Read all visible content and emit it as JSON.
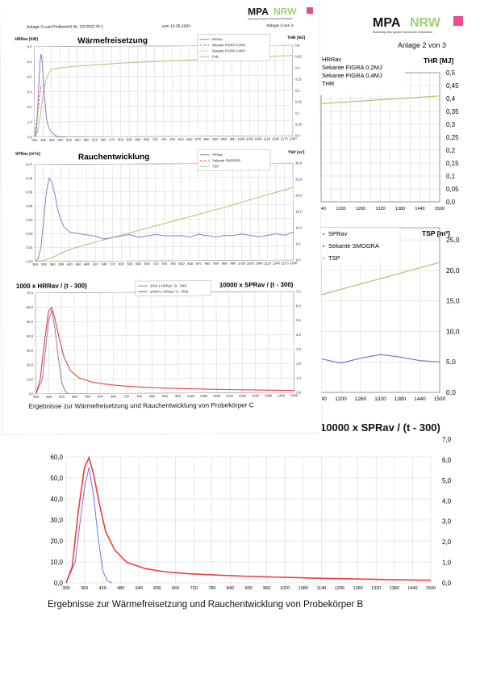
{
  "colors": {
    "hrr": "#8f79c9",
    "spr": "#8f79c9",
    "secant_red": "#ff4a4a",
    "thr_green": "#a6c96d",
    "tsp_green": "#a6c96d",
    "ratio_blue": "#7b6fe0",
    "ratio_red": "#f03c3c",
    "grid": "#c7c7c7"
  },
  "logo_text": {
    "a": "MPA",
    "b": "NRW",
    "sub": "Materialprüfungsamt Nordrhein-Westfalen"
  },
  "front": {
    "header": {
      "left": "Anlage  3  zum Prüfbericht Nr.  231302178-1",
      "mid": "vom  10.05.2024",
      "right": "Anlage  3   von   3"
    },
    "caption": "Ergebnisse zur  Wärmefreisetzung und Rauchentwicklung  von  Probekörper   C"
  },
  "back": {
    "header": {
      "right": "Anlage  2    von    3"
    },
    "caption": "Ergebnisse zur  Wärmefreisetzung und Rauchentwicklung  von  Probekörper   B",
    "title_ratio": "10000 x SPRav / (t - 300)"
  },
  "chart_data": [
    {
      "id": "front-hrr",
      "type": "line",
      "title": "Wärmefreisetzung",
      "ylabel_left": "HRRav [kW]",
      "ylabel_right": "THR [MJ]",
      "x_ticks": [
        "300",
        "330",
        "360",
        "390",
        "420",
        "450",
        "480",
        "510",
        "540",
        "570",
        "600",
        "630",
        "660",
        "690",
        "720",
        "750",
        "780",
        "810",
        "840",
        "870",
        "900",
        "930",
        "960",
        "990",
        "1020",
        "1050",
        "1080",
        "1110",
        "1140",
        "1170",
        "1200"
      ],
      "ylim_left": [
        0,
        6.0
      ],
      "y_ticks_left": [
        "0,0",
        "1,0",
        "2,0",
        "3,0",
        "4,0",
        "5,0",
        "6,0"
      ],
      "ylim_right": [
        0,
        0.4
      ],
      "y_ticks_right": [
        "0,0",
        "0,05",
        "0,1",
        "0,15",
        "0,2",
        "0,25",
        "0,3",
        "0,35",
        "0,4"
      ],
      "legend": [
        "HRRav",
        "Sekante FIGRA 0,2MJ",
        "Sekante FIGRA 0,4MJ",
        "THR"
      ],
      "series": [
        {
          "name": "HRRav",
          "axis": "left",
          "x": [
            300,
            303,
            306,
            309,
            312,
            315,
            318,
            321,
            324,
            327,
            330,
            333,
            336,
            339,
            342,
            348,
            354,
            360,
            366,
            372,
            378,
            384,
            390,
            396,
            402,
            408
          ],
          "y": [
            0.0,
            0.1,
            0.4,
            1.1,
            2.1,
            3.2,
            4.3,
            5.1,
            5.5,
            5.2,
            4.3,
            3.4,
            2.5,
            1.8,
            1.2,
            0.7,
            0.45,
            0.3,
            0.2,
            0.1,
            0.05,
            0.0,
            0.0,
            0.0,
            0.0,
            0.0
          ]
        },
        {
          "name": "Sekante FIGRA 0,2MJ",
          "axis": "left",
          "x": [
            300,
            324
          ],
          "y": [
            0.0,
            3.5
          ]
        },
        {
          "name": "Sekante FIGRA 0,4MJ",
          "axis": "left",
          "x": [
            300,
            324
          ],
          "y": [
            0.0,
            3.5
          ]
        },
        {
          "name": "THR",
          "axis": "right",
          "x": [
            300,
            310,
            320,
            330,
            340,
            350,
            360,
            390,
            420,
            480,
            540,
            600,
            700,
            800,
            900,
            1000,
            1100,
            1200
          ],
          "y": [
            0.0,
            0.02,
            0.09,
            0.19,
            0.25,
            0.28,
            0.3,
            0.305,
            0.31,
            0.315,
            0.32,
            0.325,
            0.33,
            0.335,
            0.34,
            0.345,
            0.35,
            0.355
          ]
        }
      ]
    },
    {
      "id": "front-spr",
      "type": "line",
      "title": "Rauchentwicklung",
      "ylabel_left": "SPRav [m²/s]",
      "ylabel_right": "TSP [m²]",
      "x_ticks": [
        "300",
        "330",
        "360",
        "390",
        "420",
        "450",
        "480",
        "510",
        "540",
        "570",
        "600",
        "630",
        "660",
        "690",
        "720",
        "750",
        "780",
        "810",
        "840",
        "870",
        "900",
        "930",
        "960",
        "990",
        "1020",
        "1050",
        "1080",
        "1110",
        "1140",
        "1170",
        "1200"
      ],
      "ylim_left": [
        0,
        0.07
      ],
      "y_ticks_left": [
        "0,00",
        "0,01",
        "0,02",
        "0,03",
        "0,04",
        "0,05",
        "0,06",
        "0,07"
      ],
      "ylim_right": [
        0,
        30
      ],
      "y_ticks_right": [
        "0,0",
        "5,0",
        "10,0",
        "15,0",
        "20,0",
        "25,0",
        "30,0"
      ],
      "legend": [
        "SPRav",
        "Sekante SMOGRA",
        "TSP"
      ],
      "series": [
        {
          "name": "SPRav",
          "axis": "left",
          "x": [
            300,
            310,
            320,
            330,
            340,
            350,
            360,
            370,
            380,
            390,
            400,
            420,
            450,
            480,
            510,
            540,
            570,
            600,
            630,
            660,
            690,
            720,
            750,
            780,
            810,
            840,
            870,
            900,
            930,
            960,
            990,
            1020,
            1050,
            1080,
            1110,
            1140,
            1170,
            1200
          ],
          "y": [
            0.0,
            0.002,
            0.01,
            0.03,
            0.05,
            0.06,
            0.057,
            0.048,
            0.037,
            0.03,
            0.025,
            0.021,
            0.02,
            0.019,
            0.018,
            0.016,
            0.017,
            0.018,
            0.019,
            0.017,
            0.018,
            0.019,
            0.018,
            0.018,
            0.018,
            0.017,
            0.019,
            0.018,
            0.017,
            0.018,
            0.018,
            0.019,
            0.018,
            0.017,
            0.018,
            0.019,
            0.018,
            0.02
          ]
        },
        {
          "name": "TSP",
          "axis": "right",
          "x": [
            300,
            330,
            360,
            390,
            420,
            480,
            540,
            600,
            660,
            720,
            780,
            840,
            900,
            960,
            1020,
            1080,
            1140,
            1200
          ],
          "y": [
            0.0,
            0.3,
            1.2,
            2.5,
            3.6,
            5.2,
            6.6,
            8.0,
            9.4,
            10.8,
            12.2,
            13.6,
            15.0,
            16.4,
            18.0,
            19.5,
            21.0,
            22.5
          ]
        }
      ]
    },
    {
      "id": "front-ratio",
      "type": "line",
      "title_left": "1000 x HRRav / (t - 300)",
      "title_right": "10000 x SPRav / (t - 300)",
      "x_ticks": [
        "300",
        "360",
        "420",
        "480",
        "540",
        "600",
        "660",
        "720",
        "780",
        "840",
        "900",
        "960",
        "1020",
        "1080",
        "1140",
        "1200",
        "1260",
        "1320",
        "1380",
        "1440",
        "1500"
      ],
      "ylim_left": [
        0,
        70
      ],
      "y_ticks_left": [
        "0,0",
        "10,0",
        "20,0",
        "30,0",
        "40,0",
        "50,0",
        "60,0",
        "70,0"
      ],
      "ylim_right": [
        0,
        7
      ],
      "y_ticks_right": [
        "0,0",
        "1,0",
        "2,0",
        "3,0",
        "4,0",
        "5,0",
        "6,0",
        "7,0"
      ],
      "legend": [
        "1000 x HRRav / (t - 300)",
        "10000 x SPRav / (t - 300)"
      ],
      "series": [
        {
          "name": "1000 x HRRav / (t - 300)",
          "axis": "left",
          "x": [
            300,
            330,
            345,
            360,
            375,
            390,
            405,
            420,
            435,
            450
          ],
          "y": [
            0,
            10,
            30,
            50,
            58,
            45,
            25,
            8,
            2,
            0
          ]
        },
        {
          "name": "10000 x SPRav / (t - 300)",
          "axis": "right",
          "x": [
            300,
            320,
            340,
            360,
            375,
            390,
            410,
            430,
            460,
            500,
            560,
            620,
            700,
            800,
            900,
            1000,
            1100,
            1200,
            1300,
            1400,
            1500
          ],
          "y": [
            0.0,
            1.0,
            3.5,
            5.7,
            6.0,
            5.2,
            3.8,
            2.6,
            1.6,
            1.1,
            0.8,
            0.65,
            0.52,
            0.42,
            0.35,
            0.3,
            0.26,
            0.22,
            0.19,
            0.16,
            0.14
          ]
        }
      ]
    },
    {
      "id": "back-thr-partial",
      "type": "line",
      "ylabel_right": "THR [MJ]",
      "legend": [
        "HRRav",
        "Sekante FIGRA 0,2MJ",
        "Sekante FIGRA 0,4MJ",
        "THR"
      ],
      "x_ticks": [
        "1140",
        "1170",
        "1200",
        "1230",
        "1260",
        "1290",
        "1320",
        "1350",
        "1380",
        "1410",
        "1440",
        "1470",
        "1500"
      ],
      "y_ticks_right": [
        "0,0",
        "0,05",
        "0,1",
        "0,15",
        "0,2",
        "0,25",
        "0,3",
        "0,35",
        "0,4",
        "0,45",
        "0,5"
      ],
      "ylim_right": [
        0,
        0.5
      ],
      "series": [
        {
          "name": "THR",
          "axis": "right",
          "x": [
            1140,
            1500
          ],
          "y": [
            0.38,
            0.41
          ]
        }
      ]
    },
    {
      "id": "back-tsp-partial",
      "type": "line",
      "ylabel_right": "TSP [m²]",
      "legend": [
        "SPRav",
        "Sekante SMOGRA",
        "TSP"
      ],
      "x_ticks": [
        "1140",
        "1200",
        "1260",
        "1320",
        "1380",
        "1440",
        "1500"
      ],
      "y_ticks_right": [
        "0,0",
        "5,0",
        "10,0",
        "15,0",
        "20,0",
        "25,0"
      ],
      "ylim_right": [
        0,
        27
      ],
      "series": [
        {
          "name": "TSP",
          "axis": "right",
          "x": [
            1140,
            1500
          ],
          "y": [
            16.0,
            21.3
          ]
        },
        {
          "name": "SPRav",
          "axis": "right",
          "x": [
            1140,
            1200,
            1260,
            1320,
            1380,
            1440,
            1500
          ],
          "y": [
            5.5,
            4.8,
            5.6,
            6.2,
            5.8,
            5.2,
            5.0
          ]
        }
      ]
    },
    {
      "id": "back-ratio",
      "type": "line",
      "x_ticks": [
        "300",
        "360",
        "420",
        "480",
        "540",
        "600",
        "660",
        "720",
        "780",
        "840",
        "900",
        "960",
        "1020",
        "1080",
        "1140",
        "1200",
        "1260",
        "1320",
        "1380",
        "1440",
        "1500"
      ],
      "ylim_left": [
        0,
        60
      ],
      "y_ticks_left": [
        "0,0",
        "10,0",
        "20,0",
        "30,0",
        "40,0",
        "50,0",
        "60,0"
      ],
      "ylim_right": [
        0,
        7
      ],
      "y_ticks_right": [
        "0,0",
        "1,0",
        "2,0",
        "3,0",
        "4,0",
        "5,0",
        "6,0",
        "7,0"
      ],
      "series": [
        {
          "name": "HRR",
          "axis": "left",
          "x": [
            300,
            330,
            345,
            360,
            375,
            390,
            405,
            420,
            435,
            450
          ],
          "y": [
            0,
            10,
            28,
            45,
            55,
            42,
            22,
            6,
            1,
            0
          ]
        },
        {
          "name": "SPR",
          "axis": "right",
          "x": [
            300,
            320,
            340,
            360,
            375,
            390,
            410,
            430,
            460,
            500,
            560,
            620,
            700,
            800,
            900,
            1000,
            1100,
            1200,
            1300,
            1400,
            1500
          ],
          "y": [
            0.0,
            0.8,
            3.5,
            5.6,
            6.1,
            5.3,
            3.8,
            2.5,
            1.6,
            1.0,
            0.7,
            0.55,
            0.45,
            0.38,
            0.32,
            0.28,
            0.24,
            0.21,
            0.18,
            0.15,
            0.13
          ]
        }
      ]
    }
  ]
}
